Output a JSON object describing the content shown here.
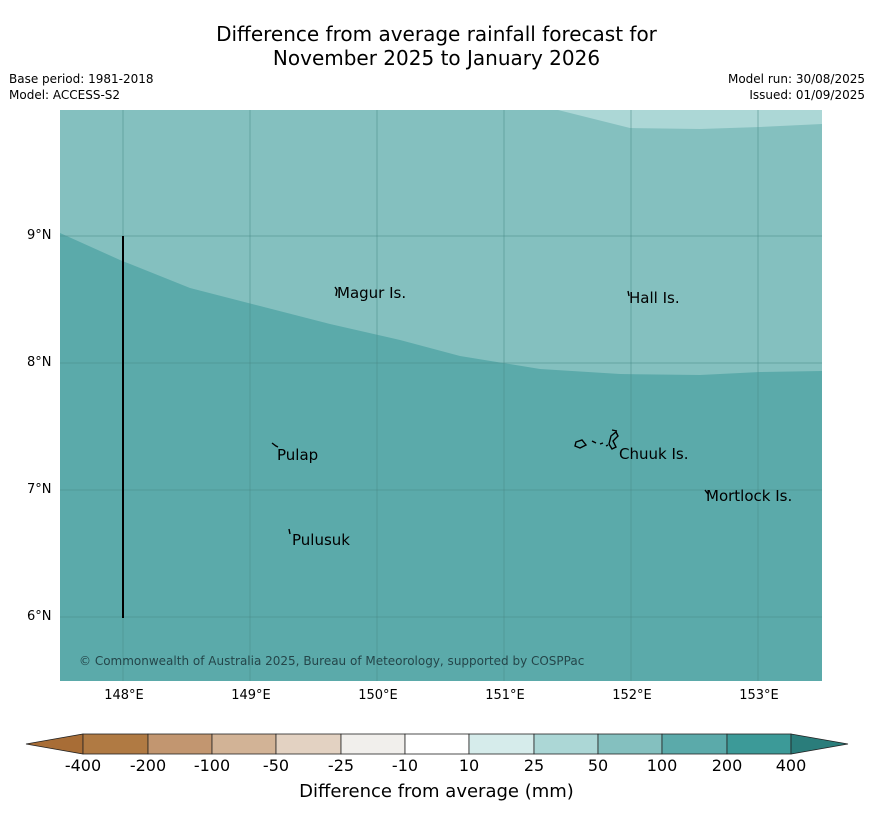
{
  "title_line1": "Difference from average rainfall forecast for",
  "title_line2": "November 2025 to January 2026",
  "base_period": "Base period: 1981-2018",
  "model": "Model: ACCESS-S2",
  "model_run": "Model run: 30/08/2025",
  "issued": "Issued: 01/09/2025",
  "lat_labels": [
    "9°N",
    "8°N",
    "7°N",
    "6°N"
  ],
  "lon_labels": [
    "148°E",
    "149°E",
    "150°E",
    "151°E",
    "152°E",
    "153°E"
  ],
  "places": {
    "magur": "Magur Is.",
    "hall": "Hall Is.",
    "pulap": "Pulap",
    "chuuk": "Chuuk Is.",
    "mortlock": "Mortlock Is.",
    "pulusuk": "Pulusuk"
  },
  "copyright": "© Commonwealth of Australia 2025, Bureau of Meteorology, supported by COSPPac",
  "colorbar": {
    "title": "Difference from average (mm)",
    "ticks": [
      "-400",
      "-200",
      "-100",
      "-50",
      "-25",
      "-10",
      "10",
      "25",
      "50",
      "100",
      "200",
      "400"
    ],
    "colors": [
      "#a86d36",
      "#b07a43",
      "#c29670",
      "#d2b396",
      "#e3d2c2",
      "#f1efec",
      "#ffffff",
      "#d6eceb",
      "#acd7d6",
      "#84c0bf",
      "#5baaaa",
      "#3c9a98",
      "#2a7d7b"
    ]
  },
  "map_colors": {
    "band_50_100": "#84c0bf",
    "band_100_200": "#5baaaa",
    "band_25_50": "#acd7d6",
    "grid": "#4a8a88"
  }
}
